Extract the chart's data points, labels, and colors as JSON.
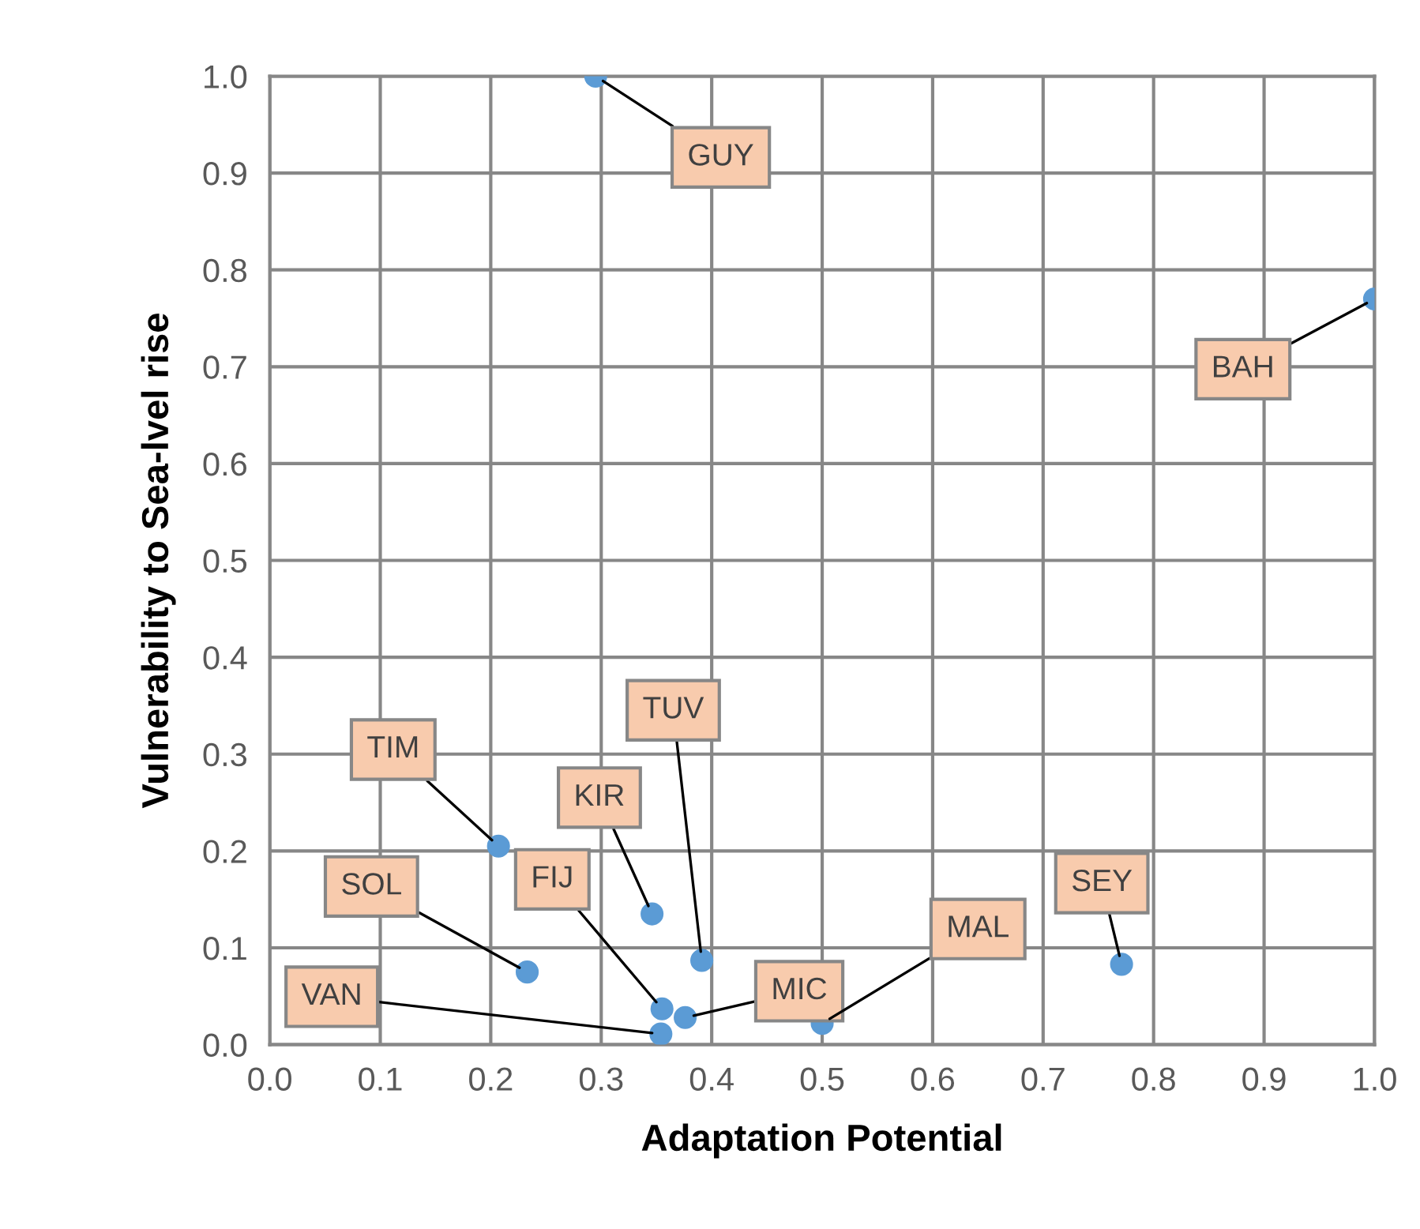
{
  "chart_data": {
    "type": "scatter",
    "xlabel": "Adaptation Potential",
    "ylabel": "Vulnerability to Sea-lvel rise",
    "x": [
      0.295,
      1.0,
      0.207,
      0.346,
      0.391,
      0.233,
      0.355,
      0.376,
      0.354,
      0.5,
      0.771
    ],
    "series": [
      {
        "color": "#5b9bd5",
        "values": [
          1.0,
          0.77,
          0.205,
          0.135,
          0.087,
          0.075,
          0.037,
          0.028,
          0.011,
          0.022,
          0.083
        ]
      }
    ],
    "annotations": [
      {
        "text": "GUY",
        "x": 0.295,
        "y": 1.0
      },
      {
        "text": "BAH",
        "x": 1.0,
        "y": 0.77
      },
      {
        "text": "TIM",
        "x": 0.207,
        "y": 0.205
      },
      {
        "text": "KIR",
        "x": 0.346,
        "y": 0.135
      },
      {
        "text": "TUV",
        "x": 0.391,
        "y": 0.087
      },
      {
        "text": "SOL",
        "x": 0.233,
        "y": 0.075
      },
      {
        "text": "FIJ",
        "x": 0.355,
        "y": 0.037
      },
      {
        "text": "MIC",
        "x": 0.376,
        "y": 0.028
      },
      {
        "text": "VAN",
        "x": 0.354,
        "y": 0.011
      },
      {
        "text": "MAL",
        "x": 0.5,
        "y": 0.022
      },
      {
        "text": "SEY",
        "x": 0.771,
        "y": 0.083
      }
    ],
    "xlim": [
      0.0,
      1.0
    ],
    "ylim": [
      0.0,
      1.0
    ],
    "xticks": [
      {
        "value": 0.0,
        "label": "0.0"
      },
      0.1,
      0.2,
      0.3,
      0.4,
      0.5,
      0.6,
      0.7,
      0.8,
      0.9,
      {
        "value": 1.0,
        "label": "1.0"
      }
    ],
    "yticks": [
      {
        "value": 0.0,
        "label": "0.0"
      },
      0.1,
      0.2,
      0.3,
      0.4,
      0.5,
      0.6,
      0.7,
      0.8,
      0.9,
      {
        "value": 1.0,
        "label": "1.0"
      }
    ],
    "grid": true,
    "marker": "circle",
    "legend": false
  }
}
